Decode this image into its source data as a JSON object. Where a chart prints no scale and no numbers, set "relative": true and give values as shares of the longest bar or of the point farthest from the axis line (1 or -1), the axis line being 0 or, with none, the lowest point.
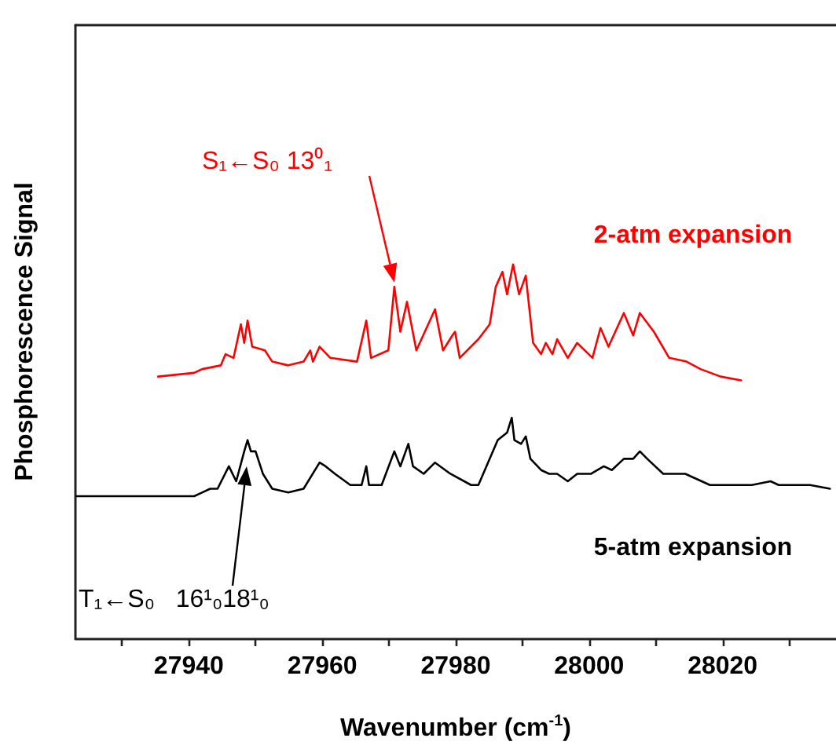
{
  "chart_data": {
    "type": "line",
    "relative": true,
    "xlabel": "Wavenumber (cm$^{-1}$)",
    "ylabel": "Phosphorescence Signal",
    "xlim": [
      27923,
      28037
    ],
    "xticks": [
      {
        "value": 27930,
        "label": null
      },
      27940,
      {
        "value": 27950,
        "label": null
      },
      27960,
      {
        "value": 27970,
        "label": null
      },
      27980,
      {
        "value": 27990,
        "label": null
      },
      28000,
      {
        "value": 28010,
        "label": null
      },
      28020,
      {
        "value": 28030,
        "label": null
      }
    ],
    "annotations": [
      "S₁←S₀ 13⁰₁",
      "T₁←S₀   16¹₀18¹₀"
    ],
    "series": [
      {
        "name": "2-atm expansion",
        "color": "#ff0000",
        "x": [
          27935.4,
          27940.8,
          27942.0,
          27944.8,
          27945.5,
          27946.7,
          27947.8,
          27948.3,
          27948.8,
          27949.5,
          27951.4,
          27952.5,
          27954.9,
          27957.2,
          27958.2,
          27958.6,
          27959.6,
          27961.2,
          27965.2,
          27966.6,
          27967.3,
          27969.9,
          27970.8,
          27971.7,
          27972.7,
          27974.1,
          27976.9,
          27978.1,
          27979.5,
          27979.9,
          27980.6,
          27983.4,
          27985.1,
          27986.0,
          27987.0,
          27987.7,
          27988.6,
          27989.5,
          27990.5,
          27991.6,
          27992.8,
          27993.5,
          27994.5,
          27995.2,
          27996.8,
          27998.2,
          28000.5,
          28001.7,
          28002.9,
          28005.2,
          28006.6,
          28007.6,
          28009.7,
          28012.0,
          28014.6,
          28016.7,
          28019.7,
          28022.8
        ],
        "values": [
          0.7,
          0.71,
          0.72,
          0.73,
          0.76,
          0.75,
          0.84,
          0.79,
          0.85,
          0.78,
          0.77,
          0.74,
          0.73,
          0.74,
          0.77,
          0.74,
          0.78,
          0.75,
          0.74,
          0.85,
          0.75,
          0.77,
          0.94,
          0.82,
          0.9,
          0.77,
          0.88,
          0.77,
          0.81,
          0.82,
          0.75,
          0.8,
          0.84,
          0.94,
          0.98,
          0.92,
          1.0,
          0.92,
          0.97,
          0.79,
          0.76,
          0.79,
          0.76,
          0.8,
          0.75,
          0.79,
          0.75,
          0.83,
          0.78,
          0.87,
          0.81,
          0.87,
          0.82,
          0.75,
          0.74,
          0.72,
          0.7,
          0.69
        ]
      },
      {
        "name": "5-atm expansion",
        "color": "#000000",
        "x": [
          27923.2,
          27927.7,
          27933.1,
          27940.8,
          27943.2,
          27944.3,
          27946.0,
          27947.1,
          27948.3,
          27948.8,
          27949.3,
          27950.0,
          27951.1,
          27952.5,
          27954.9,
          27957.2,
          27959.6,
          27960.5,
          27961.9,
          27964.2,
          27965.9,
          27966.6,
          27967.0,
          27968.9,
          27970.8,
          27971.7,
          27972.9,
          27973.6,
          27975.2,
          27976.9,
          27979.2,
          27982.3,
          27983.4,
          27986.3,
          27987.7,
          27988.4,
          27988.8,
          27989.8,
          27990.5,
          27991.2,
          27992.8,
          27994.0,
          27995.2,
          27996.8,
          27998.2,
          28000.3,
          28002.2,
          28003.4,
          28005.2,
          28006.6,
          28007.6,
          28008.7,
          28011.1,
          28014.4,
          28018.1,
          28024.4,
          28027.2,
          28028.4,
          28033.1,
          28036.1
        ],
        "values": [
          0.38,
          0.38,
          0.38,
          0.38,
          0.4,
          0.4,
          0.46,
          0.42,
          0.5,
          0.53,
          0.5,
          0.5,
          0.44,
          0.4,
          0.39,
          0.4,
          0.47,
          0.46,
          0.44,
          0.41,
          0.41,
          0.46,
          0.41,
          0.41,
          0.5,
          0.46,
          0.52,
          0.46,
          0.44,
          0.47,
          0.44,
          0.41,
          0.41,
          0.53,
          0.55,
          0.59,
          0.53,
          0.52,
          0.54,
          0.48,
          0.45,
          0.44,
          0.44,
          0.42,
          0.44,
          0.44,
          0.46,
          0.45,
          0.48,
          0.48,
          0.5,
          0.48,
          0.44,
          0.44,
          0.41,
          0.41,
          0.42,
          0.41,
          0.41,
          0.4
        ]
      }
    ]
  }
}
